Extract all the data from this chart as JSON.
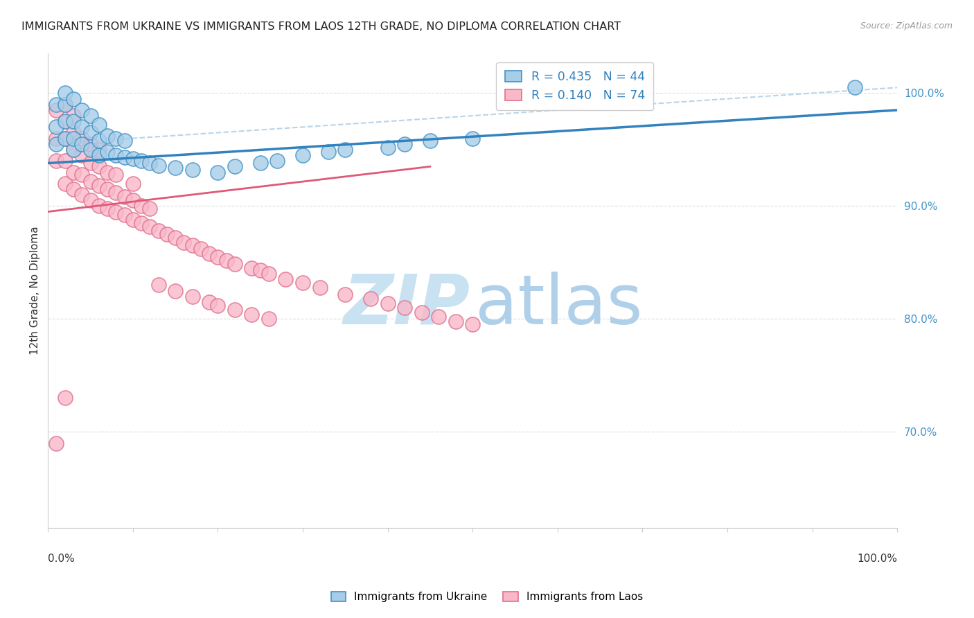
{
  "title": "IMMIGRANTS FROM UKRAINE VS IMMIGRANTS FROM LAOS 12TH GRADE, NO DIPLOMA CORRELATION CHART",
  "source": "Source: ZipAtlas.com",
  "ylabel": "12th Grade, No Diploma",
  "xlim": [
    0.0,
    1.0
  ],
  "ylim": [
    0.615,
    1.035
  ],
  "ukraine_R": 0.435,
  "ukraine_N": 44,
  "laos_R": 0.14,
  "laos_N": 74,
  "ukraine_face_color": "#a8cde8",
  "ukraine_edge_color": "#4292c6",
  "laos_face_color": "#f9b8c8",
  "laos_edge_color": "#e07090",
  "ukraine_line_color": "#3182bd",
  "laos_line_color": "#e05878",
  "dash_color": "#b8d4e8",
  "grid_color": "#dddddd",
  "background_color": "#ffffff",
  "right_tick_color": "#4292c6",
  "ukraine_x": [
    0.01,
    0.01,
    0.01,
    0.02,
    0.02,
    0.02,
    0.02,
    0.03,
    0.03,
    0.03,
    0.03,
    0.04,
    0.04,
    0.04,
    0.05,
    0.05,
    0.05,
    0.06,
    0.06,
    0.06,
    0.07,
    0.07,
    0.08,
    0.08,
    0.09,
    0.09,
    0.1,
    0.11,
    0.12,
    0.13,
    0.15,
    0.17,
    0.2,
    0.22,
    0.25,
    0.27,
    0.3,
    0.33,
    0.35,
    0.4,
    0.42,
    0.45,
    0.5,
    0.95
  ],
  "ukraine_y": [
    0.955,
    0.97,
    0.99,
    0.96,
    0.975,
    0.99,
    1.0,
    0.95,
    0.96,
    0.975,
    0.995,
    0.955,
    0.97,
    0.985,
    0.95,
    0.965,
    0.98,
    0.945,
    0.958,
    0.972,
    0.948,
    0.962,
    0.945,
    0.96,
    0.943,
    0.958,
    0.942,
    0.94,
    0.938,
    0.936,
    0.934,
    0.932,
    0.93,
    0.935,
    0.938,
    0.94,
    0.945,
    0.948,
    0.95,
    0.952,
    0.955,
    0.958,
    0.96,
    1.005
  ],
  "laos_x": [
    0.01,
    0.01,
    0.01,
    0.02,
    0.02,
    0.02,
    0.02,
    0.02,
    0.03,
    0.03,
    0.03,
    0.03,
    0.03,
    0.04,
    0.04,
    0.04,
    0.04,
    0.05,
    0.05,
    0.05,
    0.05,
    0.06,
    0.06,
    0.06,
    0.06,
    0.07,
    0.07,
    0.07,
    0.08,
    0.08,
    0.08,
    0.09,
    0.09,
    0.1,
    0.1,
    0.1,
    0.11,
    0.11,
    0.12,
    0.12,
    0.13,
    0.14,
    0.15,
    0.16,
    0.17,
    0.18,
    0.19,
    0.2,
    0.21,
    0.22,
    0.24,
    0.25,
    0.26,
    0.28,
    0.3,
    0.32,
    0.35,
    0.38,
    0.4,
    0.42,
    0.44,
    0.46,
    0.48,
    0.5,
    0.13,
    0.15,
    0.17,
    0.19,
    0.2,
    0.22,
    0.24,
    0.26,
    0.01,
    0.02
  ],
  "laos_y": [
    0.94,
    0.96,
    0.985,
    0.92,
    0.94,
    0.96,
    0.975,
    0.99,
    0.915,
    0.93,
    0.95,
    0.965,
    0.98,
    0.91,
    0.928,
    0.945,
    0.96,
    0.905,
    0.922,
    0.938,
    0.955,
    0.9,
    0.918,
    0.935,
    0.95,
    0.898,
    0.915,
    0.93,
    0.895,
    0.912,
    0.928,
    0.892,
    0.908,
    0.888,
    0.905,
    0.92,
    0.885,
    0.9,
    0.882,
    0.898,
    0.878,
    0.875,
    0.872,
    0.868,
    0.865,
    0.862,
    0.858,
    0.855,
    0.852,
    0.849,
    0.845,
    0.843,
    0.84,
    0.835,
    0.832,
    0.828,
    0.822,
    0.818,
    0.814,
    0.81,
    0.806,
    0.802,
    0.798,
    0.795,
    0.83,
    0.825,
    0.82,
    0.815,
    0.812,
    0.808,
    0.804,
    0.8,
    0.69,
    0.73
  ],
  "ukraine_line_x": [
    0.0,
    1.0
  ],
  "ukraine_line_y": [
    0.938,
    0.985
  ],
  "laos_line_x": [
    0.0,
    0.45
  ],
  "laos_line_y": [
    0.895,
    0.935
  ],
  "dash_line_x": [
    0.0,
    1.0
  ],
  "dash_line_y": [
    0.955,
    1.005
  ],
  "yticks": [
    0.7,
    0.8,
    0.9,
    1.0
  ],
  "ytick_labels": [
    "70.0%",
    "80.0%",
    "90.0%",
    "100.0%"
  ]
}
